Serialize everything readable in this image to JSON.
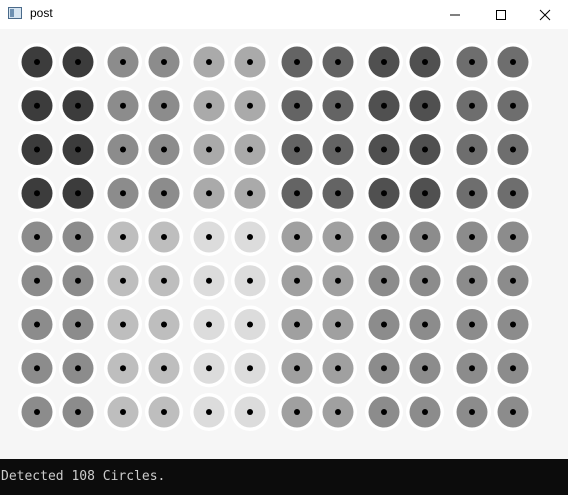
{
  "window": {
    "title": "post",
    "controls": {
      "minimize": "minimize-icon",
      "maximize": "maximize-icon",
      "close": "close-icon"
    }
  },
  "grid": {
    "rows": 9,
    "columns": 12,
    "halo_color": "#ffffff",
    "center_dot_color": "#000000",
    "ring_colors": [
      [
        "#3c3c3c",
        "#8c8c8c",
        "#aaaaaa",
        "#646464",
        "#505050",
        "#6e6e6e"
      ],
      [
        "#3c3c3c",
        "#8c8c8c",
        "#aaaaaa",
        "#646464",
        "#505050",
        "#6e6e6e"
      ],
      [
        "#3c3c3c",
        "#8c8c8c",
        "#aaaaaa",
        "#646464",
        "#505050",
        "#6e6e6e"
      ],
      [
        "#3c3c3c",
        "#8c8c8c",
        "#aaaaaa",
        "#646464",
        "#505050",
        "#6e6e6e"
      ],
      [
        "#8c8c8c",
        "#bebebe",
        "#dcdcdc",
        "#a0a0a0",
        "#8c8c8c",
        "#8c8c8c"
      ],
      [
        "#8c8c8c",
        "#bebebe",
        "#dcdcdc",
        "#a0a0a0",
        "#8c8c8c",
        "#8c8c8c"
      ],
      [
        "#8c8c8c",
        "#bebebe",
        "#dcdcdc",
        "#a0a0a0",
        "#8c8c8c",
        "#8c8c8c"
      ],
      [
        "#8c8c8c",
        "#bebebe",
        "#dcdcdc",
        "#a0a0a0",
        "#8c8c8c",
        "#8c8c8c"
      ],
      [
        "#8c8c8c",
        "#bebebe",
        "#dcdcdc",
        "#a0a0a0",
        "#8c8c8c",
        "#8c8c8c"
      ]
    ]
  },
  "status": {
    "text": "Detected 108 Circles.",
    "text_color": "#cccccc",
    "background": "#0c0c0c"
  }
}
